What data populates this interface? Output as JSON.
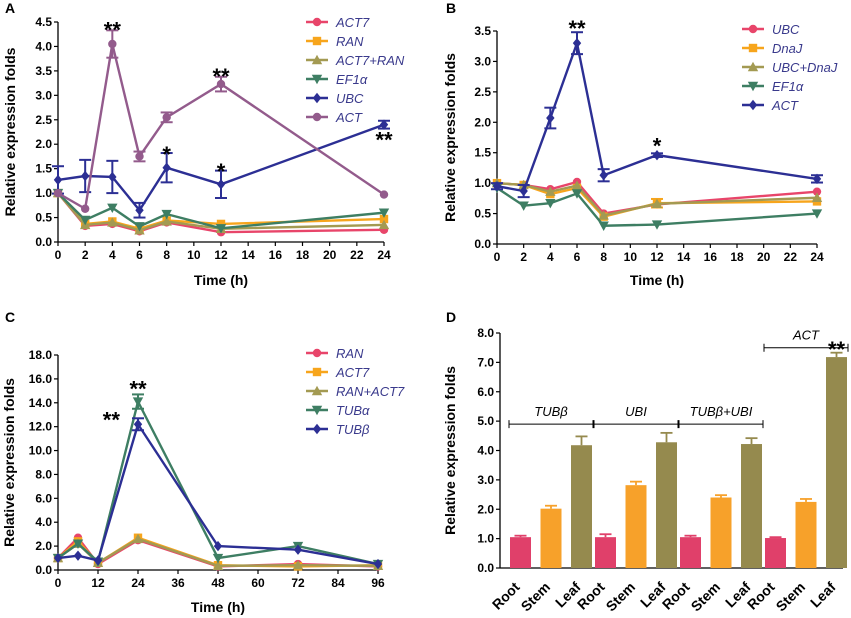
{
  "colors": {
    "red": "#e8456a",
    "orange": "#f7a51c",
    "olive": "#a39a52",
    "green": "#3e7e63",
    "blue": "#2c2f94",
    "purple": "#935b8c",
    "bar_red": "#e0406a",
    "bar_orange": "#f7a12a",
    "bar_olive": "#958a4e"
  },
  "chart_data": [
    {
      "panel": "A",
      "type": "line",
      "xlabel": "Time (h)",
      "ylabel": "Relative expression folds",
      "x": [
        0,
        2,
        4,
        6,
        8,
        12,
        24
      ],
      "xticks": [
        "0",
        "2",
        "4",
        "6",
        "8",
        "10",
        "12",
        "14",
        "16",
        "18",
        "20",
        "22",
        "24"
      ],
      "yticks": [
        "0.0",
        "0.5",
        "1.0",
        "1.5",
        "2.0",
        "2.5",
        "3.0",
        "3.5",
        "4.0",
        "4.5"
      ],
      "xlim": [
        0,
        24
      ],
      "ylim": [
        0,
        4.5
      ],
      "series": [
        {
          "name": "ACT7",
          "color": "red",
          "marker": "circle",
          "values": [
            1.0,
            0.33,
            0.37,
            0.22,
            0.4,
            0.2,
            0.25
          ],
          "errors": [
            0,
            0,
            0,
            0,
            0,
            0,
            0
          ]
        },
        {
          "name": "RAN",
          "color": "orange",
          "marker": "square",
          "values": [
            1.0,
            0.37,
            0.42,
            0.27,
            0.44,
            0.37,
            0.47
          ],
          "errors": [
            0,
            0,
            0,
            0,
            0,
            0,
            0
          ]
        },
        {
          "name": "ACT7+RAN",
          "color": "olive",
          "marker": "triangle",
          "values": [
            1.0,
            0.35,
            0.4,
            0.24,
            0.42,
            0.27,
            0.35
          ],
          "errors": [
            0,
            0,
            0,
            0,
            0,
            0,
            0
          ]
        },
        {
          "name": "EF1α",
          "color": "green",
          "marker": "triangle-down",
          "values": [
            1.0,
            0.45,
            0.7,
            0.32,
            0.57,
            0.28,
            0.6
          ],
          "errors": [
            0,
            0,
            0,
            0,
            0,
            0,
            0
          ]
        },
        {
          "name": "UBC",
          "color": "blue",
          "marker": "diamond",
          "values": [
            1.27,
            1.35,
            1.33,
            0.65,
            1.52,
            1.18,
            2.4
          ],
          "errors": [
            0.28,
            0.33,
            0.33,
            0.15,
            0.3,
            0.28,
            0.08
          ]
        },
        {
          "name": "ACT",
          "color": "purple",
          "marker": "circle",
          "values": [
            1.0,
            0.68,
            4.05,
            1.75,
            2.55,
            3.23,
            0.97
          ],
          "errors": [
            0,
            0,
            0.28,
            0.1,
            0.1,
            0.15,
            0
          ]
        }
      ],
      "annotations": [
        {
          "text": "**",
          "x": 4,
          "y": 4.35
        },
        {
          "text": "*",
          "x": 8,
          "y": 1.8
        },
        {
          "text": "**",
          "x": 12,
          "y": 3.4
        },
        {
          "text": "*",
          "x": 12,
          "y": 1.45
        },
        {
          "text": "**",
          "x": 24,
          "y": 2.1
        }
      ]
    },
    {
      "panel": "B",
      "type": "line",
      "xlabel": "Time (h)",
      "ylabel": "Relative expression folds",
      "x": [
        0,
        2,
        4,
        6,
        8,
        12,
        24
      ],
      "xticks": [
        "0",
        "2",
        "4",
        "6",
        "8",
        "10",
        "12",
        "14",
        "16",
        "18",
        "20",
        "22",
        "24"
      ],
      "yticks": [
        "0.0",
        "0.5",
        "1.0",
        "1.5",
        "2.0",
        "2.5",
        "3.0",
        "3.5"
      ],
      "xlim": [
        0,
        24
      ],
      "ylim": [
        0,
        3.5
      ],
      "series": [
        {
          "name": "UBC",
          "color": "red",
          "marker": "circle",
          "values": [
            1.0,
            0.97,
            0.9,
            1.02,
            0.5,
            0.65,
            0.86
          ],
          "errors": [
            0,
            0,
            0,
            0,
            0,
            0,
            0
          ]
        },
        {
          "name": "DnaJ",
          "color": "orange",
          "marker": "square",
          "values": [
            1.0,
            0.97,
            0.82,
            0.92,
            0.45,
            0.67,
            0.7
          ],
          "errors": [
            0,
            0,
            0,
            0,
            0,
            0.07,
            0
          ]
        },
        {
          "name": "UBC+DnaJ",
          "color": "olive",
          "marker": "triangle",
          "values": [
            1.0,
            0.97,
            0.86,
            0.96,
            0.47,
            0.66,
            0.76
          ],
          "errors": [
            0,
            0,
            0,
            0,
            0,
            0,
            0
          ]
        },
        {
          "name": "EF1α",
          "color": "green",
          "marker": "triangle-down",
          "values": [
            0.92,
            0.63,
            0.67,
            0.83,
            0.3,
            0.32,
            0.5
          ],
          "errors": [
            0,
            0,
            0,
            0,
            0,
            0,
            0
          ]
        },
        {
          "name": "ACT",
          "color": "blue",
          "marker": "diamond",
          "values": [
            0.95,
            0.87,
            2.07,
            3.3,
            1.13,
            1.46,
            1.07
          ],
          "errors": [
            0.05,
            0.1,
            0.17,
            0.18,
            0.1,
            0.03,
            0.06
          ]
        }
      ],
      "annotations": [
        {
          "text": "**",
          "x": 6,
          "y": 3.55
        },
        {
          "text": "*",
          "x": 12,
          "y": 1.62
        }
      ]
    },
    {
      "panel": "C",
      "type": "line",
      "xlabel": "Time (h)",
      "ylabel": "Relative expression folds",
      "x": [
        0,
        6,
        12,
        24,
        48,
        72,
        96
      ],
      "xticks": [
        "0",
        "12",
        "24",
        "36",
        "48",
        "60",
        "72",
        "84",
        "96"
      ],
      "yticks": [
        "0.0",
        "2.0",
        "4.0",
        "6.0",
        "8.0",
        "10.0",
        "12.0",
        "14.0",
        "16.0",
        "18.0"
      ],
      "xlim": [
        0,
        96
      ],
      "ylim": [
        0,
        18
      ],
      "series": [
        {
          "name": "RAN",
          "color": "red",
          "marker": "circle",
          "values": [
            1.0,
            2.7,
            0.5,
            2.5,
            0.3,
            0.5,
            0.3
          ],
          "errors": [
            0,
            0,
            0,
            0,
            0,
            0,
            0
          ]
        },
        {
          "name": "ACT7",
          "color": "orange",
          "marker": "square",
          "values": [
            1.0,
            2.4,
            0.6,
            2.7,
            0.4,
            0.3,
            0.4
          ],
          "errors": [
            0,
            0,
            0,
            0,
            0,
            0,
            0
          ]
        },
        {
          "name": "RAN+ACT7",
          "color": "olive",
          "marker": "triangle",
          "values": [
            1.0,
            2.2,
            0.6,
            2.6,
            0.35,
            0.4,
            0.35
          ],
          "errors": [
            0,
            0,
            0,
            0,
            0,
            0,
            0
          ]
        },
        {
          "name": "TUBα",
          "color": "green",
          "marker": "triangle-down",
          "values": [
            1.0,
            2.2,
            0.7,
            14.1,
            1.0,
            2.0,
            0.5
          ],
          "errors": [
            0,
            0,
            0,
            0.6,
            0,
            0,
            0
          ]
        },
        {
          "name": "TUBβ",
          "color": "blue",
          "marker": "diamond",
          "values": [
            1.0,
            1.2,
            0.8,
            12.2,
            2.0,
            1.7,
            0.5
          ],
          "errors": [
            0,
            0,
            0,
            0.5,
            0,
            0,
            0
          ]
        }
      ],
      "annotations": [
        {
          "text": "**",
          "x": 24,
          "y": 15.2
        },
        {
          "text": "**",
          "x": 16,
          "y": 12.6
        }
      ]
    },
    {
      "panel": "D",
      "type": "bar",
      "xlabel": "",
      "ylabel": "Relative expression folds",
      "yticks": [
        "0.0",
        "1.0",
        "2.0",
        "3.0",
        "4.0",
        "5.0",
        "6.0",
        "7.0",
        "8.0"
      ],
      "ylim": [
        0,
        8
      ],
      "groups": [
        {
          "label": "TUBβ",
          "bars": [
            {
              "tissue": "Root",
              "value": 1.05,
              "error": 0.05,
              "color": "bar_red"
            },
            {
              "tissue": "Stem",
              "value": 2.02,
              "error": 0.1,
              "color": "bar_orange"
            },
            {
              "tissue": "Leaf",
              "value": 4.18,
              "error": 0.3,
              "color": "bar_olive"
            }
          ]
        },
        {
          "label": "UBI",
          "bars": [
            {
              "tissue": "Root",
              "value": 1.05,
              "error": 0.1,
              "color": "bar_red"
            },
            {
              "tissue": "Stem",
              "value": 2.82,
              "error": 0.12,
              "color": "bar_orange"
            },
            {
              "tissue": "Leaf",
              "value": 4.28,
              "error": 0.32,
              "color": "bar_olive"
            }
          ]
        },
        {
          "label": "TUBβ+UBI",
          "bars": [
            {
              "tissue": "Root",
              "value": 1.05,
              "error": 0.05,
              "color": "bar_red"
            },
            {
              "tissue": "Stem",
              "value": 2.4,
              "error": 0.08,
              "color": "bar_orange"
            },
            {
              "tissue": "Leaf",
              "value": 4.22,
              "error": 0.2,
              "color": "bar_olive"
            }
          ]
        },
        {
          "label": "ACT",
          "bars": [
            {
              "tissue": "Root",
              "value": 1.02,
              "error": 0.03,
              "color": "bar_red"
            },
            {
              "tissue": "Stem",
              "value": 2.25,
              "error": 0.1,
              "color": "bar_orange"
            },
            {
              "tissue": "Leaf",
              "value": 7.18,
              "error": 0.15,
              "color": "bar_olive"
            }
          ]
        }
      ],
      "annotations": [
        {
          "text": "**",
          "group": 3,
          "bar": 2,
          "y": 7.45
        }
      ]
    }
  ]
}
